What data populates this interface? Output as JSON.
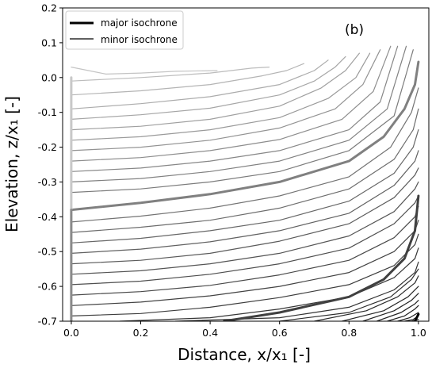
{
  "chart_data": {
    "type": "line",
    "panel_label": "(b)",
    "xlabel": "Distance, x/x₁  [-]",
    "ylabel": "Elevation, z/x₁  [-]",
    "xlim": [
      -0.025,
      1.03
    ],
    "ylim": [
      -0.7,
      0.2
    ],
    "xticks": [
      0.0,
      0.2,
      0.4,
      0.6,
      0.8,
      1.0
    ],
    "xtick_labels": [
      "0.0",
      "0.2",
      "0.4",
      "0.6",
      "0.8",
      "1.0"
    ],
    "yticks": [
      -0.7,
      -0.6,
      -0.5,
      -0.4,
      -0.3,
      -0.2,
      -0.1,
      0.0,
      0.1,
      0.2
    ],
    "ytick_labels": [
      "-0.7",
      "-0.6",
      "-0.5",
      "-0.4",
      "-0.3",
      "-0.2",
      "-0.1",
      "0.0",
      "0.1",
      "0.2"
    ],
    "legend": {
      "position": "upper-left",
      "entries": [
        {
          "label": "major isochrone",
          "style": "thick"
        },
        {
          "label": "minor isochrone",
          "style": "thin"
        }
      ]
    },
    "series": [
      {
        "name": "isochrone-1",
        "kind": "minor",
        "color": "#c4c4c4",
        "points": [
          [
            0.0,
            0.03
          ],
          [
            0.1,
            0.01
          ],
          [
            0.2,
            0.013
          ],
          [
            0.3,
            0.018
          ],
          [
            0.42,
            0.02
          ]
        ]
      },
      {
        "name": "isochrone-2",
        "kind": "minor",
        "color": "#bcbcbc",
        "points": [
          [
            0.0,
            -0.01
          ],
          [
            0.2,
            0.0
          ],
          [
            0.4,
            0.013
          ],
          [
            0.52,
            0.027
          ],
          [
            0.57,
            0.03
          ]
        ]
      },
      {
        "name": "isochrone-3",
        "kind": "minor",
        "color": "#b4b4b4",
        "points": [
          [
            0.0,
            -0.05
          ],
          [
            0.2,
            -0.038
          ],
          [
            0.4,
            -0.02
          ],
          [
            0.55,
            0.005
          ],
          [
            0.62,
            0.02
          ],
          [
            0.67,
            0.04
          ]
        ]
      },
      {
        "name": "isochrone-4",
        "kind": "minor",
        "color": "#acacac",
        "points": [
          [
            0.0,
            -0.09
          ],
          [
            0.2,
            -0.075
          ],
          [
            0.4,
            -0.055
          ],
          [
            0.6,
            -0.02
          ],
          [
            0.7,
            0.02
          ],
          [
            0.74,
            0.05
          ]
        ]
      },
      {
        "name": "isochrone-5",
        "kind": "minor",
        "color": "#a6a6a6",
        "points": [
          [
            0.0,
            -0.12
          ],
          [
            0.2,
            -0.107
          ],
          [
            0.4,
            -0.088
          ],
          [
            0.6,
            -0.05
          ],
          [
            0.7,
            -0.01
          ],
          [
            0.76,
            0.03
          ],
          [
            0.79,
            0.06
          ]
        ]
      },
      {
        "name": "isochrone-6",
        "kind": "minor",
        "color": "#a0a0a0",
        "points": [
          [
            0.0,
            -0.15
          ],
          [
            0.2,
            -0.14
          ],
          [
            0.4,
            -0.12
          ],
          [
            0.6,
            -0.082
          ],
          [
            0.72,
            -0.03
          ],
          [
            0.79,
            0.02
          ],
          [
            0.83,
            0.07
          ]
        ]
      },
      {
        "name": "isochrone-7",
        "kind": "minor",
        "color": "#9a9a9a",
        "points": [
          [
            0.0,
            -0.18
          ],
          [
            0.2,
            -0.17
          ],
          [
            0.4,
            -0.15
          ],
          [
            0.6,
            -0.115
          ],
          [
            0.74,
            -0.06
          ],
          [
            0.82,
            0.0
          ],
          [
            0.86,
            0.07
          ]
        ]
      },
      {
        "name": "isochrone-8",
        "kind": "minor",
        "color": "#939393",
        "points": [
          [
            0.0,
            -0.21
          ],
          [
            0.2,
            -0.2
          ],
          [
            0.4,
            -0.18
          ],
          [
            0.6,
            -0.145
          ],
          [
            0.76,
            -0.09
          ],
          [
            0.84,
            -0.02
          ],
          [
            0.89,
            0.08
          ]
        ]
      },
      {
        "name": "isochrone-9",
        "kind": "minor",
        "color": "#8d8d8d",
        "points": [
          [
            0.0,
            -0.24
          ],
          [
            0.2,
            -0.23
          ],
          [
            0.4,
            -0.21
          ],
          [
            0.6,
            -0.178
          ],
          [
            0.78,
            -0.12
          ],
          [
            0.87,
            -0.04
          ],
          [
            0.92,
            0.09
          ]
        ]
      },
      {
        "name": "isochrone-10",
        "kind": "minor",
        "color": "#878787",
        "points": [
          [
            0.0,
            -0.27
          ],
          [
            0.2,
            -0.26
          ],
          [
            0.4,
            -0.24
          ],
          [
            0.6,
            -0.21
          ],
          [
            0.8,
            -0.15
          ],
          [
            0.89,
            -0.07
          ],
          [
            0.94,
            0.09
          ]
        ]
      },
      {
        "name": "isochrone-11",
        "kind": "minor",
        "color": "#818181",
        "points": [
          [
            0.0,
            -0.3
          ],
          [
            0.2,
            -0.29
          ],
          [
            0.4,
            -0.27
          ],
          [
            0.6,
            -0.24
          ],
          [
            0.8,
            -0.18
          ],
          [
            0.91,
            -0.09
          ],
          [
            0.965,
            0.09
          ]
        ]
      },
      {
        "name": "isochrone-12",
        "kind": "minor",
        "color": "#7b7b7b",
        "points": [
          [
            0.0,
            -0.33
          ],
          [
            0.2,
            -0.32
          ],
          [
            0.4,
            -0.3
          ],
          [
            0.6,
            -0.27
          ],
          [
            0.8,
            -0.21
          ],
          [
            0.93,
            -0.11
          ],
          [
            0.985,
            0.08
          ]
        ]
      },
      {
        "name": "isochrone-13",
        "kind": "major",
        "color": "#808080",
        "points": [
          [
            0.0,
            -0.38
          ],
          [
            0.2,
            -0.36
          ],
          [
            0.4,
            -0.335
          ],
          [
            0.6,
            -0.3
          ],
          [
            0.8,
            -0.24
          ],
          [
            0.9,
            -0.17
          ],
          [
            0.96,
            -0.09
          ],
          [
            0.99,
            -0.02
          ],
          [
            1.0,
            0.045
          ]
        ]
      },
      {
        "name": "isochrone-14",
        "kind": "minor",
        "color": "#737373",
        "points": [
          [
            0.0,
            -0.415
          ],
          [
            0.2,
            -0.398
          ],
          [
            0.4,
            -0.375
          ],
          [
            0.6,
            -0.34
          ],
          [
            0.8,
            -0.285
          ],
          [
            0.92,
            -0.2
          ],
          [
            0.98,
            -0.1
          ],
          [
            1.0,
            -0.03
          ]
        ]
      },
      {
        "name": "isochrone-15",
        "kind": "minor",
        "color": "#6d6d6d",
        "points": [
          [
            0.0,
            -0.445
          ],
          [
            0.2,
            -0.43
          ],
          [
            0.4,
            -0.41
          ],
          [
            0.6,
            -0.375
          ],
          [
            0.8,
            -0.32
          ],
          [
            0.93,
            -0.235
          ],
          [
            0.985,
            -0.15
          ],
          [
            1.0,
            -0.09
          ]
        ]
      },
      {
        "name": "isochrone-16",
        "kind": "minor",
        "color": "#676767",
        "points": [
          [
            0.0,
            -0.475
          ],
          [
            0.2,
            -0.462
          ],
          [
            0.4,
            -0.44
          ],
          [
            0.6,
            -0.41
          ],
          [
            0.8,
            -0.355
          ],
          [
            0.93,
            -0.275
          ],
          [
            0.985,
            -0.2
          ],
          [
            1.0,
            -0.15
          ]
        ]
      },
      {
        "name": "isochrone-17",
        "kind": "minor",
        "color": "#616161",
        "points": [
          [
            0.0,
            -0.505
          ],
          [
            0.2,
            -0.493
          ],
          [
            0.4,
            -0.472
          ],
          [
            0.6,
            -0.44
          ],
          [
            0.8,
            -0.39
          ],
          [
            0.93,
            -0.31
          ],
          [
            0.99,
            -0.24
          ],
          [
            1.0,
            -0.21
          ]
        ]
      },
      {
        "name": "isochrone-18",
        "kind": "minor",
        "color": "#5b5b5b",
        "points": [
          [
            0.0,
            -0.535
          ],
          [
            0.2,
            -0.525
          ],
          [
            0.4,
            -0.505
          ],
          [
            0.6,
            -0.47
          ],
          [
            0.8,
            -0.42
          ],
          [
            0.93,
            -0.345
          ],
          [
            0.99,
            -0.28
          ],
          [
            1.0,
            -0.26
          ]
        ]
      },
      {
        "name": "isochrone-19",
        "kind": "minor",
        "color": "#555555",
        "points": [
          [
            0.0,
            -0.565
          ],
          [
            0.2,
            -0.555
          ],
          [
            0.4,
            -0.535
          ],
          [
            0.6,
            -0.505
          ],
          [
            0.8,
            -0.455
          ],
          [
            0.93,
            -0.385
          ],
          [
            0.99,
            -0.32
          ],
          [
            1.0,
            -0.3
          ]
        ]
      },
      {
        "name": "isochrone-20",
        "kind": "minor",
        "color": "#4f4f4f",
        "points": [
          [
            0.0,
            -0.595
          ],
          [
            0.2,
            -0.585
          ],
          [
            0.4,
            -0.565
          ],
          [
            0.6,
            -0.535
          ],
          [
            0.8,
            -0.49
          ],
          [
            0.93,
            -0.42
          ],
          [
            0.99,
            -0.36
          ],
          [
            1.0,
            -0.34
          ]
        ]
      },
      {
        "name": "isochrone-21",
        "kind": "minor",
        "color": "#494949",
        "points": [
          [
            0.0,
            -0.625
          ],
          [
            0.2,
            -0.615
          ],
          [
            0.4,
            -0.597
          ],
          [
            0.6,
            -0.567
          ],
          [
            0.8,
            -0.525
          ],
          [
            0.93,
            -0.46
          ],
          [
            0.99,
            -0.4
          ],
          [
            1.0,
            -0.37
          ]
        ]
      },
      {
        "name": "isochrone-22",
        "kind": "minor",
        "color": "#434343",
        "points": [
          [
            0.0,
            -0.655
          ],
          [
            0.2,
            -0.645
          ],
          [
            0.4,
            -0.627
          ],
          [
            0.6,
            -0.6
          ],
          [
            0.8,
            -0.56
          ],
          [
            0.93,
            -0.5
          ],
          [
            0.99,
            -0.44
          ],
          [
            1.0,
            -0.41
          ]
        ]
      },
      {
        "name": "isochrone-23",
        "kind": "minor",
        "color": "#3d3d3d",
        "points": [
          [
            0.0,
            -0.685
          ],
          [
            0.2,
            -0.678
          ],
          [
            0.4,
            -0.66
          ],
          [
            0.6,
            -0.632
          ],
          [
            0.8,
            -0.595
          ],
          [
            0.93,
            -0.54
          ],
          [
            0.99,
            -0.48
          ],
          [
            1.0,
            -0.45
          ]
        ]
      },
      {
        "name": "isochrone-24",
        "kind": "minor",
        "color": "#373737",
        "points": [
          [
            0.14,
            -0.7
          ],
          [
            0.4,
            -0.69
          ],
          [
            0.6,
            -0.665
          ],
          [
            0.8,
            -0.63
          ],
          [
            0.93,
            -0.575
          ],
          [
            0.99,
            -0.52
          ],
          [
            1.0,
            -0.49
          ]
        ]
      },
      {
        "name": "isochrone-25",
        "kind": "minor",
        "color": "#333333",
        "points": [
          [
            0.3,
            -0.7
          ],
          [
            0.6,
            -0.69
          ],
          [
            0.8,
            -0.66
          ],
          [
            0.93,
            -0.61
          ],
          [
            0.99,
            -0.56
          ],
          [
            1.0,
            -0.53
          ]
        ]
      },
      {
        "name": "isochrone-26",
        "kind": "major",
        "color": "#404040",
        "points": [
          [
            0.44,
            -0.7
          ],
          [
            0.6,
            -0.675
          ],
          [
            0.8,
            -0.63
          ],
          [
            0.9,
            -0.58
          ],
          [
            0.96,
            -0.52
          ],
          [
            0.99,
            -0.44
          ],
          [
            1.0,
            -0.34
          ]
        ]
      },
      {
        "name": "isochrone-27",
        "kind": "minor",
        "color": "#2d2d2d",
        "points": [
          [
            0.6,
            -0.7
          ],
          [
            0.8,
            -0.675
          ],
          [
            0.92,
            -0.63
          ],
          [
            0.98,
            -0.58
          ],
          [
            1.0,
            -0.55
          ]
        ]
      },
      {
        "name": "isochrone-28",
        "kind": "minor",
        "color": "#2a2a2a",
        "points": [
          [
            0.7,
            -0.7
          ],
          [
            0.85,
            -0.67
          ],
          [
            0.94,
            -0.63
          ],
          [
            0.99,
            -0.59
          ],
          [
            1.0,
            -0.57
          ]
        ]
      },
      {
        "name": "isochrone-29",
        "kind": "minor",
        "color": "#272727",
        "points": [
          [
            0.78,
            -0.7
          ],
          [
            0.9,
            -0.67
          ],
          [
            0.97,
            -0.63
          ],
          [
            1.0,
            -0.6
          ]
        ]
      },
      {
        "name": "isochrone-30",
        "kind": "minor",
        "color": "#242424",
        "points": [
          [
            0.84,
            -0.7
          ],
          [
            0.93,
            -0.67
          ],
          [
            0.98,
            -0.64
          ],
          [
            1.0,
            -0.62
          ]
        ]
      },
      {
        "name": "isochrone-31",
        "kind": "minor",
        "color": "#212121",
        "points": [
          [
            0.88,
            -0.7
          ],
          [
            0.95,
            -0.675
          ],
          [
            0.99,
            -0.65
          ],
          [
            1.0,
            -0.64
          ]
        ]
      },
      {
        "name": "isochrone-32",
        "kind": "minor",
        "color": "#1e1e1e",
        "points": [
          [
            0.91,
            -0.7
          ],
          [
            0.96,
            -0.685
          ],
          [
            0.99,
            -0.665
          ],
          [
            1.0,
            -0.655
          ]
        ]
      },
      {
        "name": "isochrone-33",
        "kind": "minor",
        "color": "#1b1b1b",
        "points": [
          [
            0.94,
            -0.7
          ],
          [
            0.975,
            -0.69
          ],
          [
            1.0,
            -0.675
          ]
        ]
      },
      {
        "name": "isochrone-34",
        "kind": "minor",
        "color": "#181818",
        "points": [
          [
            0.96,
            -0.7
          ],
          [
            0.985,
            -0.695
          ],
          [
            1.0,
            -0.685
          ]
        ]
      },
      {
        "name": "isochrone-35",
        "kind": "minor",
        "color": "#151515",
        "points": [
          [
            0.98,
            -0.7
          ],
          [
            1.0,
            -0.695
          ]
        ]
      },
      {
        "name": "isochrone-36",
        "kind": "major",
        "color": "#000000",
        "points": [
          [
            0.99,
            -0.7
          ],
          [
            0.995,
            -0.69
          ],
          [
            1.0,
            -0.68
          ]
        ]
      },
      {
        "name": "vertical-segment-upper",
        "kind": "major",
        "color": "#c8c8c8",
        "points": [
          [
            0.0,
            0.0
          ],
          [
            0.0,
            -0.38
          ]
        ]
      },
      {
        "name": "vertical-segment-lower",
        "kind": "major",
        "color": "#8a8a8a",
        "points": [
          [
            0.0,
            -0.38
          ],
          [
            0.0,
            -0.7
          ]
        ]
      }
    ]
  }
}
